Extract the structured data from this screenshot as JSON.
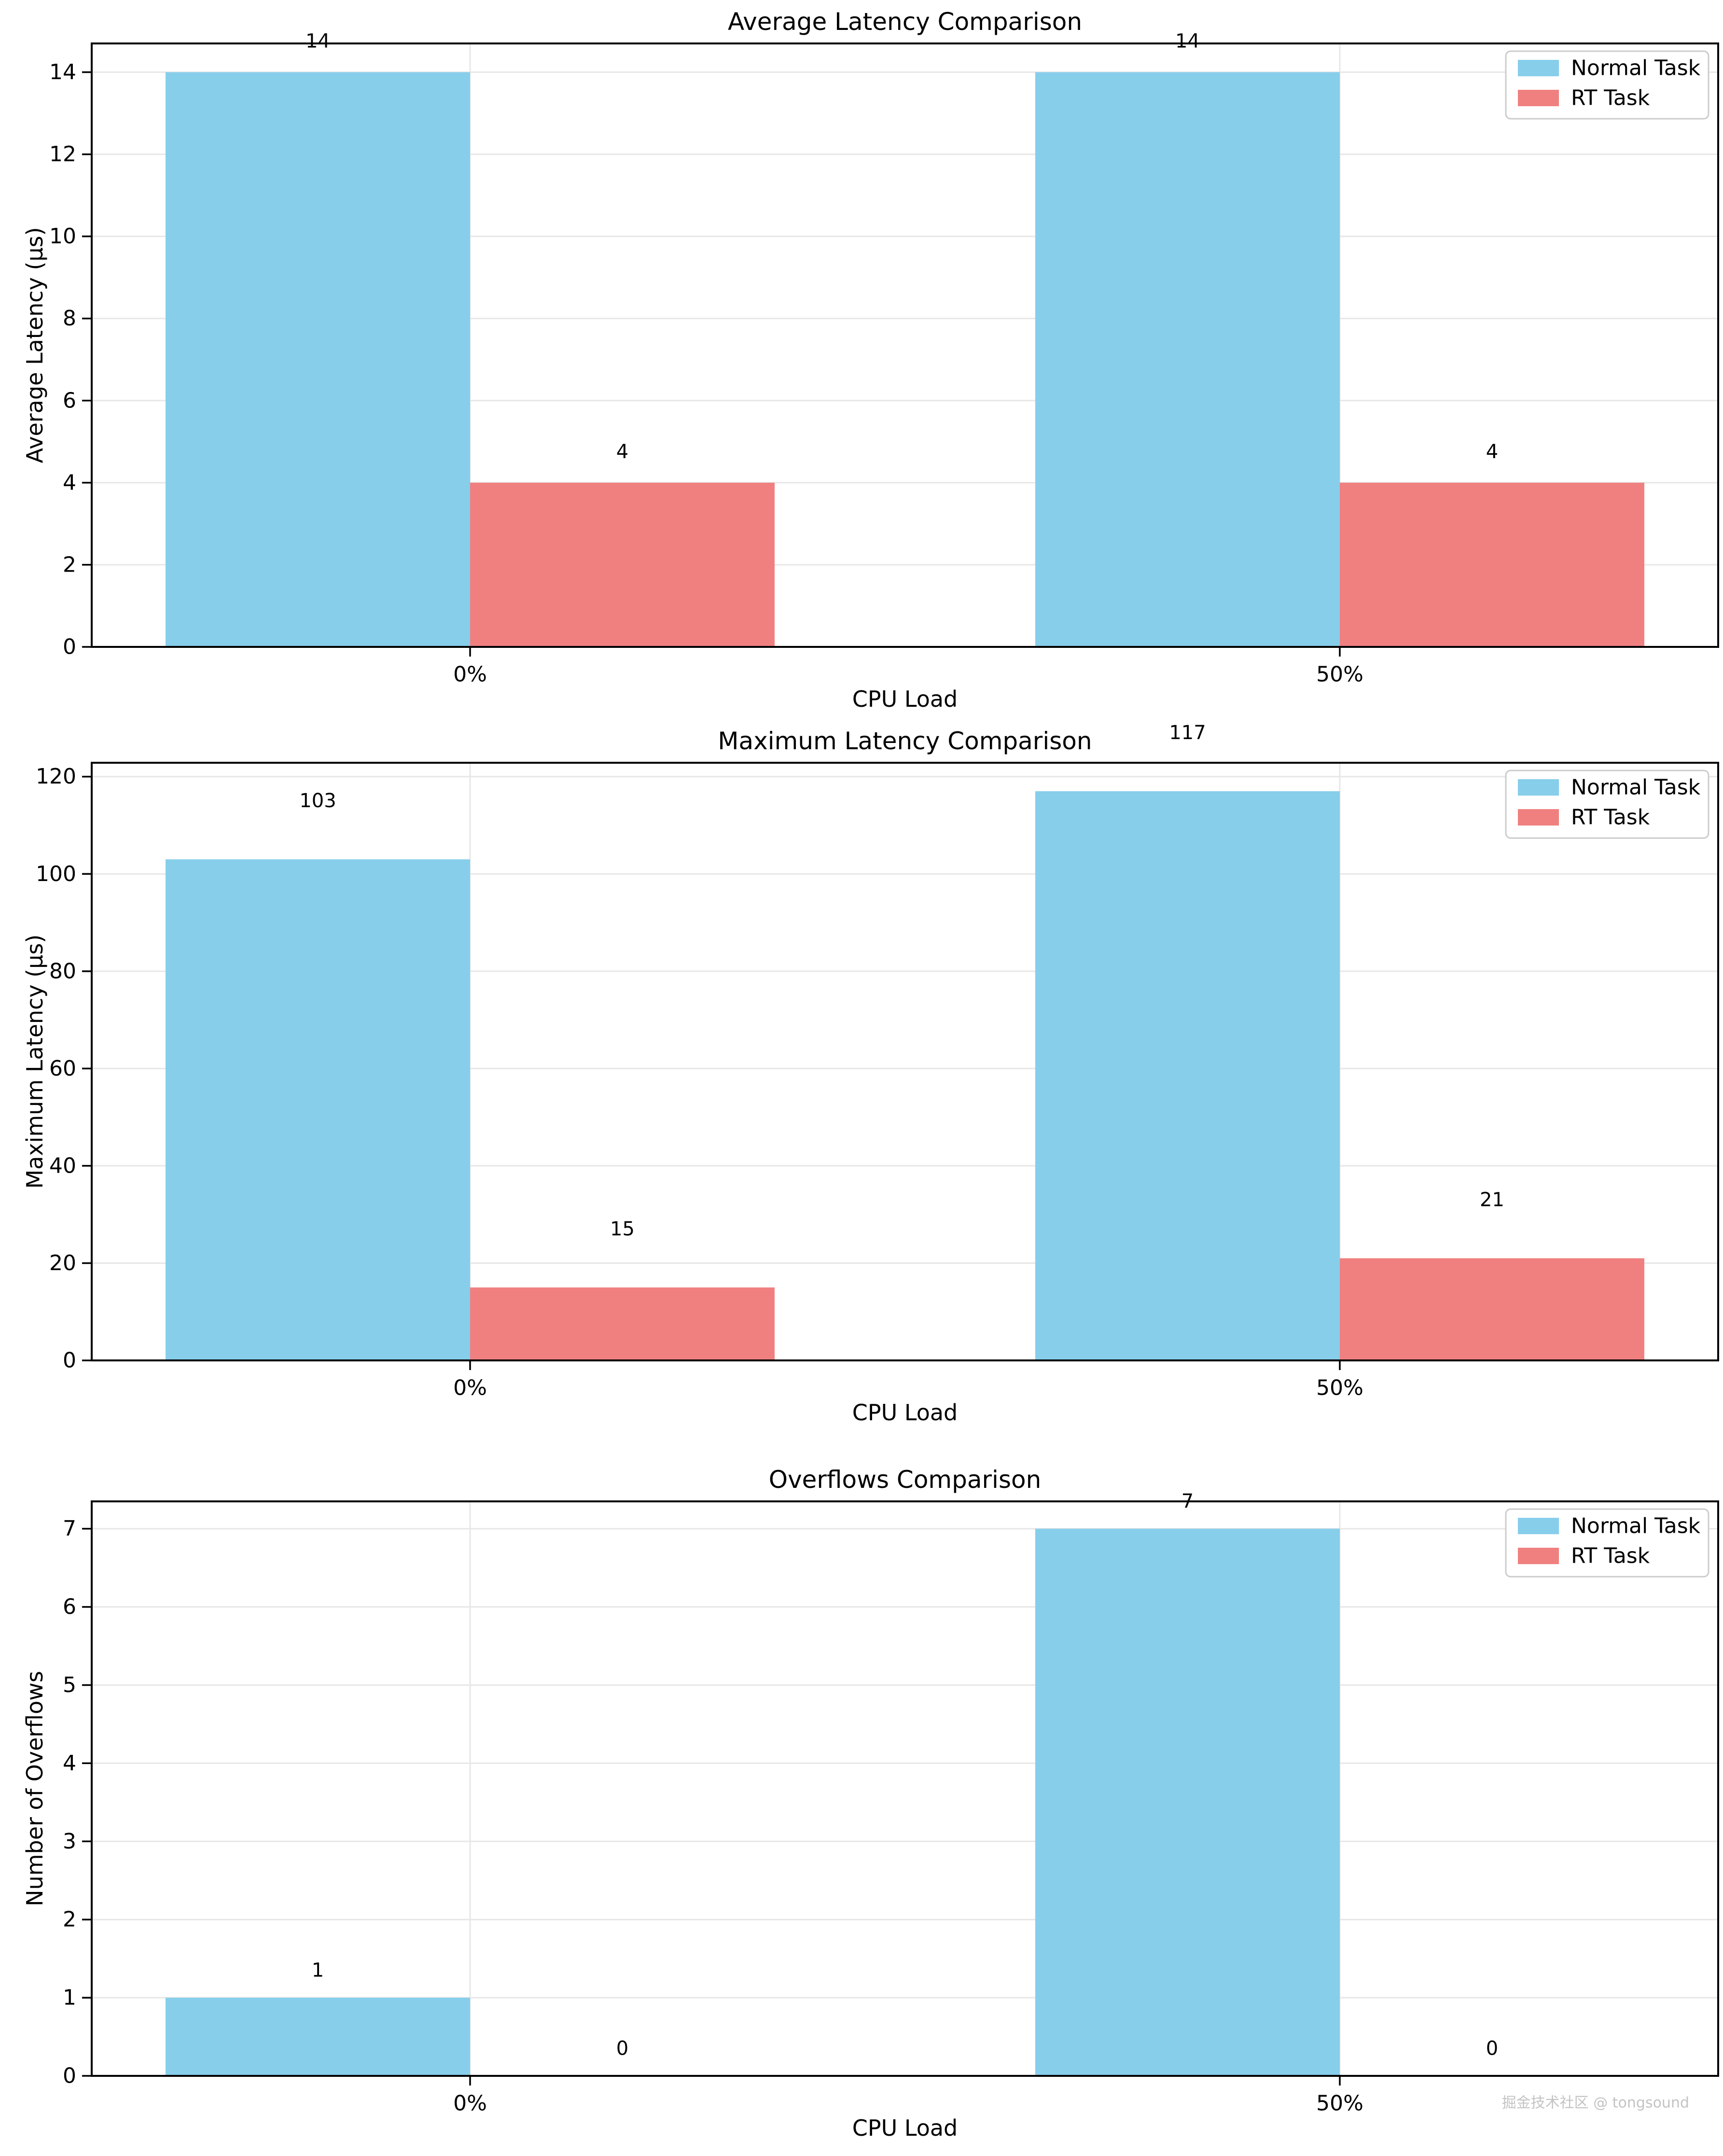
{
  "figure": {
    "background": "#ffffff"
  },
  "watermark": {
    "text": "掘金技术社区 @ tongsound",
    "color": "#c3c3c3"
  },
  "legend": {
    "position": "upper right",
    "items": [
      {
        "label": "Normal Task",
        "color": "#87CEEB"
      },
      {
        "label": "RT Task",
        "color": "#F08080"
      }
    ]
  },
  "chart_data": [
    {
      "type": "bar",
      "title": "Average Latency Comparison",
      "xlabel": "CPU Load",
      "ylabel": "Average Latency (µs)",
      "categories": [
        "0%",
        "50%"
      ],
      "series": [
        {
          "name": "Normal Task",
          "color": "#87CEEB",
          "values": [
            14,
            14
          ]
        },
        {
          "name": "RT Task",
          "color": "#F08080",
          "values": [
            4,
            4
          ]
        }
      ],
      "bar_value_labels": [
        [
          14,
          14
        ],
        [
          4,
          4
        ]
      ],
      "ylim": [
        0,
        14.7
      ],
      "yticks": [
        0,
        2,
        4,
        6,
        8,
        10,
        12,
        14
      ],
      "label_offset": 0.75,
      "grid": true,
      "legend_position": "upper right"
    },
    {
      "type": "bar",
      "title": "Maximum Latency Comparison",
      "xlabel": "CPU Load",
      "ylabel": "Maximum Latency (µs)",
      "categories": [
        "0%",
        "50%"
      ],
      "series": [
        {
          "name": "Normal Task",
          "color": "#87CEEB",
          "values": [
            103,
            117
          ]
        },
        {
          "name": "RT Task",
          "color": "#F08080",
          "values": [
            15,
            21
          ]
        }
      ],
      "bar_value_labels": [
        [
          103,
          117
        ],
        [
          15,
          21
        ]
      ],
      "ylim": [
        0,
        122.85
      ],
      "yticks": [
        0,
        20,
        40,
        60,
        80,
        100,
        120
      ],
      "label_offset": 12,
      "grid": true,
      "legend_position": "upper right"
    },
    {
      "type": "bar",
      "title": "Overflows Comparison",
      "xlabel": "CPU Load",
      "ylabel": "Number of Overflows",
      "categories": [
        "0%",
        "50%"
      ],
      "series": [
        {
          "name": "Normal Task",
          "color": "#87CEEB",
          "values": [
            1,
            7
          ]
        },
        {
          "name": "RT Task",
          "color": "#F08080",
          "values": [
            0,
            0
          ]
        }
      ],
      "bar_value_labels": [
        [
          1,
          7
        ],
        [
          0,
          0
        ]
      ],
      "ylim": [
        0,
        7.35
      ],
      "yticks": [
        0,
        1,
        2,
        3,
        4,
        5,
        6,
        7
      ],
      "label_offset": 0.35,
      "grid": true,
      "legend_position": "upper right"
    }
  ]
}
